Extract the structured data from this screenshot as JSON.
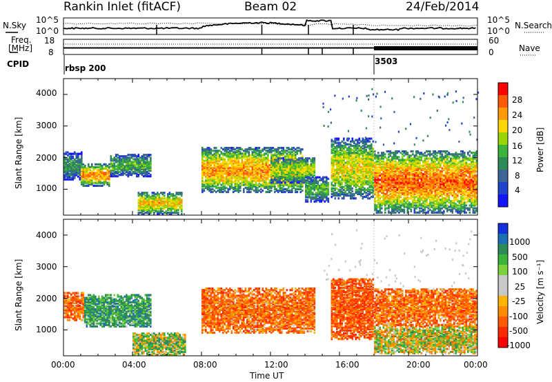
{
  "header": {
    "station": "Rankin Inlet (fitACF)",
    "beam": "Beam 02",
    "date": "24/Feb/2014"
  },
  "top_panels": {
    "nsky_label": "N.Sky",
    "nsearch_label": "N.Search",
    "noise_ticks": [
      "10^5",
      "10^0"
    ],
    "freq_label_line1": "Freq.",
    "freq_label_line2": "[MHz]",
    "freq_ticks": [
      "18",
      "8"
    ],
    "nave_label": "Nave",
    "nave_ticks": [
      "60",
      "0"
    ],
    "cpid_label": "CPID",
    "cpid_segments": [
      "rbsp 200",
      "3503"
    ]
  },
  "power_panel": {
    "y_axis_label": "Slant Range [km]",
    "y_ticks": [
      "4000",
      "3000",
      "2000",
      "1000"
    ],
    "colorbar_label": "Power [dB]",
    "colorbar_ticks": [
      "28",
      "24",
      "20",
      "16",
      "12",
      "8",
      "4"
    ],
    "colors": [
      "#ff0000",
      "#ff5a00",
      "#ff9a00",
      "#ffd700",
      "#9ad400",
      "#3cb43c",
      "#2e8b57",
      "#3c6496",
      "#2244cc",
      "#1414ff"
    ]
  },
  "velocity_panel": {
    "y_axis_label": "Slant Range [km]",
    "y_ticks": [
      "4000",
      "3000",
      "2000",
      "1000"
    ],
    "colorbar_label": "Velocity [m s⁻¹]",
    "colorbar_ticks": [
      "1000",
      "500",
      "100",
      "25",
      "-25",
      "-100",
      "-500",
      "-1000"
    ],
    "colors": [
      "#1432dc",
      "#1e6eb4",
      "#2e8b57",
      "#3cb43c",
      "#7cd23c",
      "#c8c8c8",
      "#c8c8c8",
      "#ffb400",
      "#ff8c00",
      "#ff5a00",
      "#ff2a00",
      "#ff0000"
    ]
  },
  "x_axis": {
    "label": "Time UT",
    "ticks": [
      "00:00",
      "04:00",
      "08:00",
      "12:00",
      "16:00",
      "20:00",
      "00:00"
    ]
  },
  "chart_data": {
    "type": "heatmap",
    "title": "Rankin Inlet (fitACF)  Beam 02  24/Feb/2014",
    "xlabel": "Time UT",
    "ylabel": "Slant Range [km]",
    "x_range_hours": [
      0,
      24
    ],
    "y_range_km": [
      180,
      4500
    ],
    "mode_change_hour": 18,
    "nsky_dotted_level_log": 2.6,
    "frequency_mhz": {
      "rbsp 200": 11.5,
      "3503": 11.2
    },
    "nave": {
      "rbsp 200": 12,
      "3503": 22
    },
    "power_regions_db": [
      {
        "t_start": 0.0,
        "t_end": 1.0,
        "r_min": 1300,
        "r_max": 2200,
        "peak": 14
      },
      {
        "t_start": 1.0,
        "t_end": 2.7,
        "r_min": 1100,
        "r_max": 1800,
        "peak": 26
      },
      {
        "t_start": 2.7,
        "t_end": 5.0,
        "r_min": 1400,
        "r_max": 2100,
        "peak": 16
      },
      {
        "t_start": 4.3,
        "t_end": 6.8,
        "r_min": 200,
        "r_max": 900,
        "peak": 24
      },
      {
        "t_start": 8.0,
        "t_end": 13.8,
        "r_min": 900,
        "r_max": 2300,
        "peak": 26
      },
      {
        "t_start": 12.0,
        "t_end": 14.5,
        "r_min": 1200,
        "r_max": 2000,
        "peak": 20
      },
      {
        "t_start": 14.0,
        "t_end": 15.3,
        "r_min": 600,
        "r_max": 1400,
        "peak": 16
      },
      {
        "t_start": 15.5,
        "t_end": 18.0,
        "r_min": 700,
        "r_max": 2600,
        "peak": 22
      },
      {
        "t_start": 18.0,
        "t_end": 24.0,
        "r_min": 250,
        "r_max": 2200,
        "peak": 28
      }
    ],
    "velocity_regions_ms": [
      {
        "t_start": 0.0,
        "t_end": 1.2,
        "r_min": 1300,
        "r_max": 2200,
        "typical": -300
      },
      {
        "t_start": 1.2,
        "t_end": 5.0,
        "r_min": 1100,
        "r_max": 2100,
        "typical": 300
      },
      {
        "t_start": 4.0,
        "t_end": 7.0,
        "r_min": 200,
        "r_max": 900,
        "typical": 100
      },
      {
        "t_start": 8.0,
        "t_end": 14.5,
        "r_min": 900,
        "r_max": 2300,
        "typical": -300
      },
      {
        "t_start": 15.5,
        "t_end": 18.0,
        "r_min": 700,
        "r_max": 2600,
        "typical": -400
      },
      {
        "t_start": 18.0,
        "t_end": 24.0,
        "r_min": 1100,
        "r_max": 2300,
        "typical": -300
      },
      {
        "t_start": 18.0,
        "t_end": 24.0,
        "r_min": 250,
        "r_max": 1100,
        "typical": 0
      }
    ]
  }
}
